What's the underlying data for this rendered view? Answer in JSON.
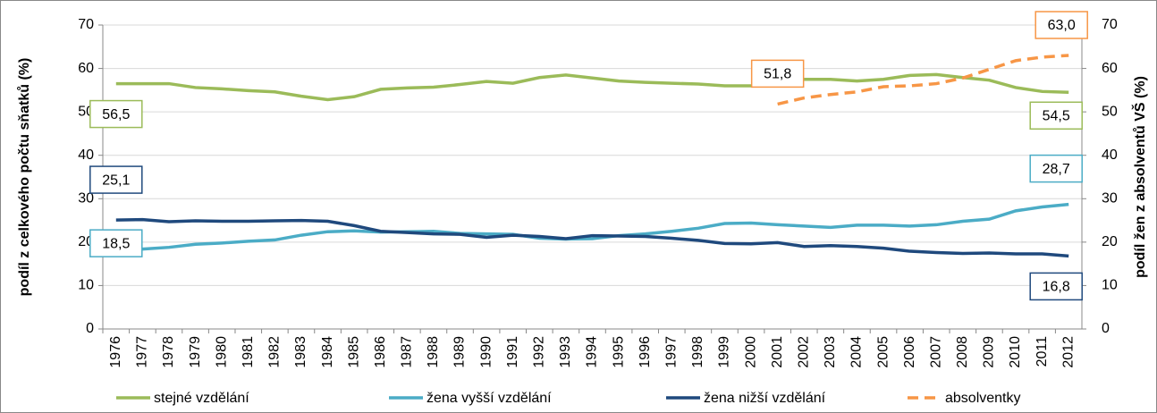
{
  "chart_data": {
    "type": "line",
    "y_label": "podíl z celkového počtu sňatků (%)",
    "y2_label": "podíl žen z absolventů VŠ (%)",
    "categories": [
      "1976",
      "1977",
      "1978",
      "1979",
      "1980",
      "1981",
      "1982",
      "1983",
      "1984",
      "1985",
      "1986",
      "1987",
      "1988",
      "1989",
      "1990",
      "1991",
      "1992",
      "1993",
      "1994",
      "1995",
      "1996",
      "1997",
      "1998",
      "1999",
      "2000",
      "2001",
      "2002",
      "2003",
      "2004",
      "2005",
      "2006",
      "2007",
      "2008",
      "2009",
      "2010",
      "2011",
      "2012"
    ],
    "ylim": [
      0,
      70
    ],
    "yticks": [
      0,
      10,
      20,
      30,
      40,
      50,
      60,
      70
    ],
    "y2lim": [
      0,
      70
    ],
    "y2ticks": [
      0,
      10,
      20,
      30,
      40,
      50,
      60,
      70
    ],
    "grid": true,
    "legend": "bottom",
    "series": [
      {
        "name": "stejné vzdělání",
        "color": "#9bbb59",
        "dash": false,
        "values": [
          56.5,
          56.5,
          56.5,
          55.6,
          55.3,
          54.9,
          54.6,
          53.6,
          52.8,
          53.5,
          55.2,
          55.5,
          55.7,
          56.3,
          57.0,
          56.6,
          57.9,
          58.5,
          57.8,
          57.1,
          56.8,
          56.6,
          56.4,
          56.0,
          56.0,
          56.2,
          57.5,
          57.5,
          57.1,
          57.5,
          58.4,
          58.6,
          57.9,
          57.3,
          55.6,
          54.7,
          54.5
        ],
        "value_labels": [
          "56,5",
          null,
          null,
          null,
          null,
          null,
          null,
          null,
          null,
          null,
          null,
          null,
          null,
          null,
          null,
          null,
          null,
          null,
          null,
          null,
          null,
          null,
          null,
          null,
          null,
          null,
          null,
          null,
          null,
          null,
          null,
          null,
          null,
          null,
          null,
          null,
          "54,5"
        ]
      },
      {
        "name": "žena vyšší vzdělání",
        "color": "#4bacc6",
        "dash": false,
        "values": [
          18.5,
          18.4,
          18.8,
          19.5,
          19.8,
          20.2,
          20.5,
          21.6,
          22.4,
          22.6,
          22.3,
          22.4,
          22.5,
          22.0,
          21.9,
          21.8,
          20.9,
          20.7,
          20.8,
          21.5,
          21.9,
          22.5,
          23.2,
          24.3,
          24.4,
          24.0,
          23.7,
          23.4,
          23.9,
          23.9,
          23.7,
          24.0,
          24.8,
          25.3,
          27.2,
          28.1,
          28.7
        ],
        "value_labels": [
          "18,5",
          null,
          null,
          null,
          null,
          null,
          null,
          null,
          null,
          null,
          null,
          null,
          null,
          null,
          null,
          null,
          null,
          null,
          null,
          null,
          null,
          null,
          null,
          null,
          null,
          null,
          null,
          null,
          null,
          null,
          null,
          null,
          null,
          null,
          null,
          null,
          "28,7"
        ]
      },
      {
        "name": "žena nižší vzdělání",
        "color": "#1f497d",
        "dash": false,
        "values": [
          25.1,
          25.2,
          24.7,
          24.9,
          24.8,
          24.8,
          24.9,
          25.0,
          24.8,
          23.8,
          22.5,
          22.2,
          21.9,
          21.8,
          21.1,
          21.6,
          21.3,
          20.8,
          21.5,
          21.4,
          21.3,
          20.9,
          20.4,
          19.7,
          19.6,
          19.9,
          19.0,
          19.2,
          19.0,
          18.6,
          17.9,
          17.6,
          17.4,
          17.5,
          17.3,
          17.3,
          16.8
        ],
        "value_labels": [
          "25,1",
          null,
          null,
          null,
          null,
          null,
          null,
          null,
          null,
          null,
          null,
          null,
          null,
          null,
          null,
          null,
          null,
          null,
          null,
          null,
          null,
          null,
          null,
          null,
          null,
          null,
          null,
          null,
          null,
          null,
          null,
          null,
          null,
          null,
          null,
          null,
          "16,8"
        ]
      },
      {
        "name": "absolventky",
        "color": "#f79646",
        "dash": true,
        "axis": "y2",
        "values": [
          null,
          null,
          null,
          null,
          null,
          null,
          null,
          null,
          null,
          null,
          null,
          null,
          null,
          null,
          null,
          null,
          null,
          null,
          null,
          null,
          null,
          null,
          null,
          null,
          null,
          51.8,
          53.2,
          54.0,
          54.6,
          55.8,
          56.0,
          56.5,
          57.8,
          59.8,
          61.8,
          62.6,
          63.0
        ],
        "value_labels": [
          null,
          null,
          null,
          null,
          null,
          null,
          null,
          null,
          null,
          null,
          null,
          null,
          null,
          null,
          null,
          null,
          null,
          null,
          null,
          null,
          null,
          null,
          null,
          null,
          null,
          "51,8",
          null,
          null,
          null,
          null,
          null,
          null,
          null,
          null,
          null,
          null,
          "63,0"
        ]
      }
    ]
  }
}
